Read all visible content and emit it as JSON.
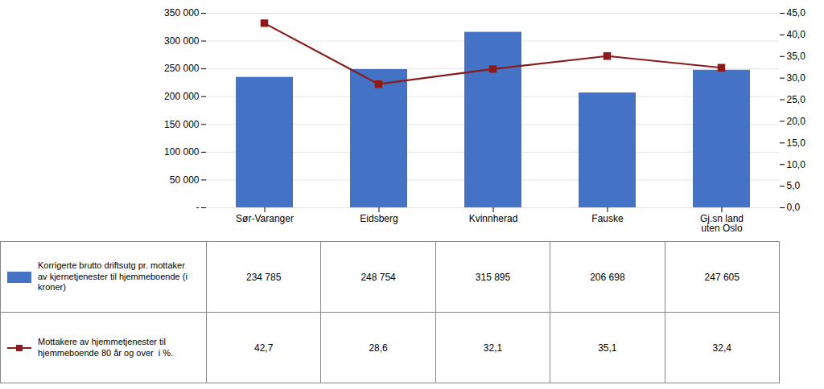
{
  "chart_data": {
    "type": "bar",
    "categories": [
      "Sør-Varanger",
      "Eidsberg",
      "Kvinnherad",
      "Fauske",
      "Gj.sn land\nuten Oslo"
    ],
    "series": [
      {
        "name": "Korrigerte brutto driftsutg pr. mottaker\nav kjernetjenester til hjemmeboende (i\nkroner)",
        "type": "bar",
        "color": "#4472C4",
        "values": [
          234785,
          248754,
          315895,
          206698,
          247605
        ],
        "value_labels": [
          "234 785",
          "248 754",
          "315 895",
          "206 698",
          "247 605"
        ]
      },
      {
        "name": "Mottakere av hjemmetjenester til\nhjemmeboende 80 år og over  i %.",
        "type": "line",
        "axis": "y2",
        "color": "#8B1A1A",
        "marker": "square",
        "values": [
          42.7,
          28.6,
          32.1,
          35.1,
          32.4
        ],
        "value_labels": [
          "42,7",
          "28,6",
          "32,1",
          "35,1",
          "32,4"
        ]
      }
    ],
    "ylim": [
      0,
      350000
    ],
    "yticks": [
      {
        "value": 0,
        "label": "-"
      },
      {
        "value": 50000,
        "label": "50 000"
      },
      {
        "value": 100000,
        "label": "100 000"
      },
      {
        "value": 150000,
        "label": "150 000"
      },
      {
        "value": 200000,
        "label": "200 000"
      },
      {
        "value": 250000,
        "label": "250 000"
      },
      {
        "value": 300000,
        "label": "300 000"
      },
      {
        "value": 350000,
        "label": "350 000"
      }
    ],
    "y2lim": [
      0,
      45.0
    ],
    "y2ticks": [
      {
        "value": 0.0,
        "label": "0,0"
      },
      {
        "value": 5.0,
        "label": "5,0"
      },
      {
        "value": 10.0,
        "label": "10,0"
      },
      {
        "value": 15.0,
        "label": "15,0"
      },
      {
        "value": 20.0,
        "label": "20,0"
      },
      {
        "value": 25.0,
        "label": "25,0"
      },
      {
        "value": 30.0,
        "label": "30,0"
      },
      {
        "value": 35.0,
        "label": "35,0"
      },
      {
        "value": 40.0,
        "label": "40,0"
      },
      {
        "value": 45.0,
        "label": "45,0"
      }
    ],
    "grid": true,
    "data_labels": true
  }
}
